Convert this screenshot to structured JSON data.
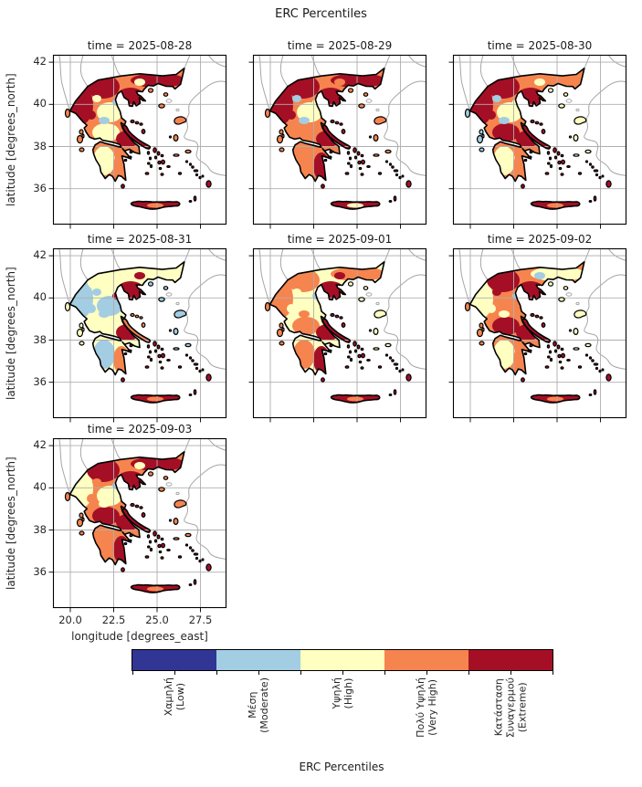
{
  "figure": {
    "title": "ERC Percentiles"
  },
  "chart_data": {
    "type": "heatmap",
    "subtype": "categorical-facet-maps",
    "region": "Greece",
    "title": "ERC Percentiles",
    "xlabel": "longitude [degrees_east]",
    "ylabel": "latitude [degrees_north]",
    "x_tick_labels": [
      "20.0",
      "22.5",
      "25.0",
      "27.5"
    ],
    "y_tick_labels": [
      "42",
      "40",
      "38",
      "36"
    ],
    "xlim": [
      18.9,
      28.9
    ],
    "ylim": [
      34.3,
      42.35
    ],
    "grid": true,
    "colorbar_label": "ERC Percentiles",
    "classes": [
      {
        "id": "low",
        "label_lines": [
          "Χαμηλή",
          "(Low)"
        ],
        "label": "Χαμηλή (Low)",
        "color": "#313695"
      },
      {
        "id": "moderate",
        "label_lines": [
          "Μέση",
          "(Moderate)"
        ],
        "label": "Μέση (Moderate)",
        "color": "#a3cde2"
      },
      {
        "id": "high",
        "label_lines": [
          "Υψηλή",
          "(High)"
        ],
        "label": "Υψηλή (High)",
        "color": "#feffc0"
      },
      {
        "id": "very_high",
        "label_lines": [
          "Πολύ Υψηλή",
          "(Very High)"
        ],
        "label": "Πολύ Υψηλή (Very High)",
        "color": "#f6844e"
      },
      {
        "id": "extreme",
        "label_lines": [
          "Κατάσταση",
          "Συναγερμού",
          "(Extreme)"
        ],
        "label": "Κατάσταση Συναγερμού (Extreme)",
        "color": "#a50f26"
      }
    ],
    "facets": [
      {
        "date": "2025-08-28",
        "title": "time = 2025-08-28",
        "regions": {
          "base": "very_high",
          "nw": "extreme",
          "nc": "extreme",
          "ne": "extreme",
          "ch": "extreme",
          "th": "high",
          "cg": "high",
          "ec": "extreme",
          "s1": "high",
          "s2": "moderate",
          "s3": "moderate",
          "s4": "extreme",
          "s5": "high",
          "pw": "high",
          "pe": "very_high",
          "euboea": "extreme",
          "crete": "extreme",
          "creteSpeck": "very_high",
          "ionian": "very_high",
          "sporades": "extreme",
          "neAegean": "very_high",
          "cyclades": "extreme",
          "dodecanese": "extreme"
        }
      },
      {
        "date": "2025-08-29",
        "title": "time = 2025-08-29",
        "regions": {
          "base": "very_high",
          "nw": "extreme",
          "nc": "extreme",
          "ne": "extreme",
          "ch": "extreme",
          "th": "high",
          "cg": "very_high",
          "ec": "extreme",
          "s1": "moderate",
          "s2": "high",
          "s3": "moderate",
          "s4": "extreme",
          "s5": "very_high",
          "pw": "very_high",
          "pe": "extreme",
          "euboea": "extreme",
          "crete": "extreme",
          "creteSpeck": "high",
          "ionian": "very_high",
          "sporades": "extreme",
          "neAegean": "very_high",
          "cyclades": "extreme",
          "dodecanese": "extreme"
        }
      },
      {
        "date": "2025-08-30",
        "title": "time = 2025-08-30",
        "regions": {
          "base": "very_high",
          "nw": "extreme",
          "nc": "extreme",
          "ne": "very_high",
          "ch": "extreme",
          "th": "high",
          "cg": "extreme",
          "ec": "extreme",
          "s1": "moderate",
          "s2": "high",
          "s3": "moderate",
          "s4": "extreme",
          "s5": "high",
          "pw": "high",
          "pe": "very_high",
          "euboea": "extreme",
          "crete": "extreme",
          "creteSpeck": "very_high",
          "ionian": "moderate",
          "sporades": "extreme",
          "neAegean": "high",
          "cyclades": "extreme",
          "dodecanese": "extreme"
        }
      },
      {
        "date": "2025-08-31",
        "title": "time = 2025-08-31",
        "regions": {
          "base": "high",
          "nw": "moderate",
          "nc": "high",
          "ne": "high",
          "ch": "extreme",
          "th": "moderate",
          "cg": "high",
          "ec": "extreme",
          "s1": "moderate",
          "s2": "extreme",
          "s3": "moderate",
          "s4": "moderate",
          "s5": "extreme",
          "pw": "moderate",
          "pe": "very_high",
          "euboea": "very_high",
          "crete": "extreme",
          "creteSpeck": "very_high",
          "ionian": "high",
          "sporades": "very_high",
          "neAegean": "moderate",
          "cyclades": "extreme",
          "dodecanese": "extreme"
        }
      },
      {
        "date": "2025-09-01",
        "title": "time = 2025-09-01",
        "regions": {
          "base": "high",
          "nw": "very_high",
          "nc": "very_high",
          "ne": "very_high",
          "ch": "extreme",
          "th": "high",
          "cg": "very_high",
          "ec": "extreme",
          "s1": "high",
          "s2": "moderate",
          "s3": "very_high",
          "s4": "high",
          "s5": "extreme",
          "pw": "very_high",
          "pe": "extreme",
          "euboea": "extreme",
          "crete": "extreme",
          "creteSpeck": "very_high",
          "ionian": "very_high",
          "sporades": "extreme",
          "neAegean": "high",
          "cyclades": "extreme",
          "dodecanese": "extreme"
        }
      },
      {
        "date": "2025-09-02",
        "title": "time = 2025-09-02",
        "regions": {
          "base": "very_high",
          "nw": "high",
          "nc": "extreme",
          "ne": "high",
          "ch": "extreme",
          "th": "very_high",
          "cg": "extreme",
          "ec": "extreme",
          "s1": "extreme",
          "s2": "moderate",
          "s3": "high",
          "s4": "high",
          "s5": "moderate",
          "pw": "high",
          "pe": "very_high",
          "euboea": "extreme",
          "crete": "extreme",
          "creteSpeck": "very_high",
          "ionian": "very_high",
          "sporades": "extreme",
          "neAegean": "high",
          "cyclades": "extreme",
          "dodecanese": "extreme"
        }
      },
      {
        "date": "2025-09-03",
        "title": "time = 2025-09-03",
        "regions": {
          "base": "very_high",
          "nw": "high",
          "nc": "extreme",
          "ne": "extreme",
          "ch": "extreme",
          "th": "high",
          "cg": "extreme",
          "ec": "extreme",
          "s1": "very_high",
          "s2": "moderate",
          "s3": "high",
          "s4": "very_high",
          "s5": "high",
          "pw": "very_high",
          "pe": "extreme",
          "euboea": "extreme",
          "crete": "extreme",
          "creteSpeck": "very_high",
          "ionian": "very_high",
          "sporades": "extreme",
          "neAegean": "very_high",
          "cyclades": "extreme",
          "dodecanese": "extreme"
        }
      }
    ]
  }
}
